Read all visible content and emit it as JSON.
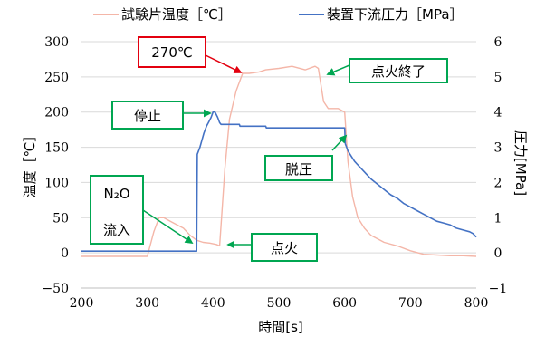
{
  "chart_data": {
    "type": "line",
    "title": "",
    "xlabel": "時間[s]",
    "ylabel_left": "温度［℃］",
    "ylabel_right": "圧力[MPa]",
    "xlim": [
      200,
      800
    ],
    "ylim_left": [
      -50,
      300
    ],
    "ylim_right": [
      -1,
      6
    ],
    "x_ticks": [
      200,
      300,
      400,
      500,
      600,
      700,
      800
    ],
    "y_left_ticks": [
      -50,
      0,
      50,
      100,
      150,
      200,
      250,
      300
    ],
    "y_right_ticks": [
      -1,
      0,
      1,
      2,
      3,
      4,
      5,
      6
    ],
    "grid": "horizontal",
    "legend_position": "top",
    "series": [
      {
        "name": "試験片温度［℃］",
        "axis": "left",
        "color": "#f4b6a8",
        "x": [
          200,
          300,
          310,
          318,
          325,
          335,
          345,
          355,
          365,
          375,
          385,
          395,
          405,
          410,
          418,
          425,
          435,
          445,
          455,
          470,
          480,
          500,
          520,
          540,
          555,
          560,
          568,
          575,
          580,
          590,
          600,
          605,
          612,
          620,
          630,
          640,
          650,
          660,
          680,
          700,
          720,
          740,
          760,
          780,
          800
        ],
        "y": [
          -5,
          -5,
          30,
          50,
          50,
          45,
          40,
          35,
          25,
          18,
          15,
          14,
          12,
          10,
          120,
          190,
          230,
          255,
          255,
          257,
          260,
          262,
          265,
          260,
          265,
          262,
          215,
          205,
          205,
          205,
          200,
          130,
          80,
          50,
          35,
          25,
          20,
          15,
          10,
          3,
          -2,
          -3,
          -4,
          -4,
          -5
        ]
      },
      {
        "name": "装置下流圧力［MPa］",
        "axis": "right",
        "color": "#4472c4",
        "x": [
          200,
          375,
          376,
          380,
          383,
          386,
          390,
          393,
          397,
          400,
          403,
          407,
          410,
          412,
          440,
          441,
          480,
          481,
          600,
          601,
          605,
          610,
          615,
          620,
          630,
          640,
          650,
          660,
          670,
          680,
          690,
          700,
          710,
          720,
          730,
          740,
          750,
          760,
          770,
          780,
          790,
          795,
          800
        ],
        "y": [
          0.05,
          0.05,
          2.8,
          3.0,
          3.2,
          3.4,
          3.6,
          3.7,
          3.85,
          4.0,
          4.0,
          3.85,
          3.7,
          3.65,
          3.65,
          3.6,
          3.6,
          3.55,
          3.55,
          3.1,
          2.9,
          2.75,
          2.6,
          2.5,
          2.3,
          2.1,
          1.95,
          1.8,
          1.65,
          1.55,
          1.4,
          1.3,
          1.2,
          1.1,
          1.0,
          0.9,
          0.85,
          0.8,
          0.7,
          0.65,
          0.6,
          0.55,
          0.45
        ]
      }
    ],
    "annotations": [
      {
        "text": "270℃",
        "style": "red-box",
        "arrow_color": "red",
        "target": {
          "x": 445,
          "y_left": 255
        }
      },
      {
        "text": "点火終了",
        "style": "green-box",
        "arrow_color": "green",
        "target": {
          "x": 578,
          "y_left": 258
        }
      },
      {
        "text": "停止",
        "style": "green-box",
        "arrow_color": "green",
        "target": {
          "x": 395,
          "y_left": 198
        }
      },
      {
        "text": "脱圧",
        "style": "green-box",
        "arrow_color": "green",
        "target": {
          "x": 602,
          "y_left": 178
        }
      },
      {
        "text": "N₂O",
        "text2": "流入",
        "style": "green-box",
        "arrow_color": "green",
        "target": {
          "x": 368,
          "y_left": 15
        }
      },
      {
        "text": "点火",
        "style": "green-box",
        "arrow_color": "green",
        "target": {
          "x": 420,
          "y_left": 12
        }
      }
    ]
  },
  "colors": {
    "temperature_line": "#f4b6a8",
    "pressure_line": "#4472c4",
    "grid": "#d9d9d9",
    "green_box": "#00a651",
    "red_box": "#e3000f"
  }
}
